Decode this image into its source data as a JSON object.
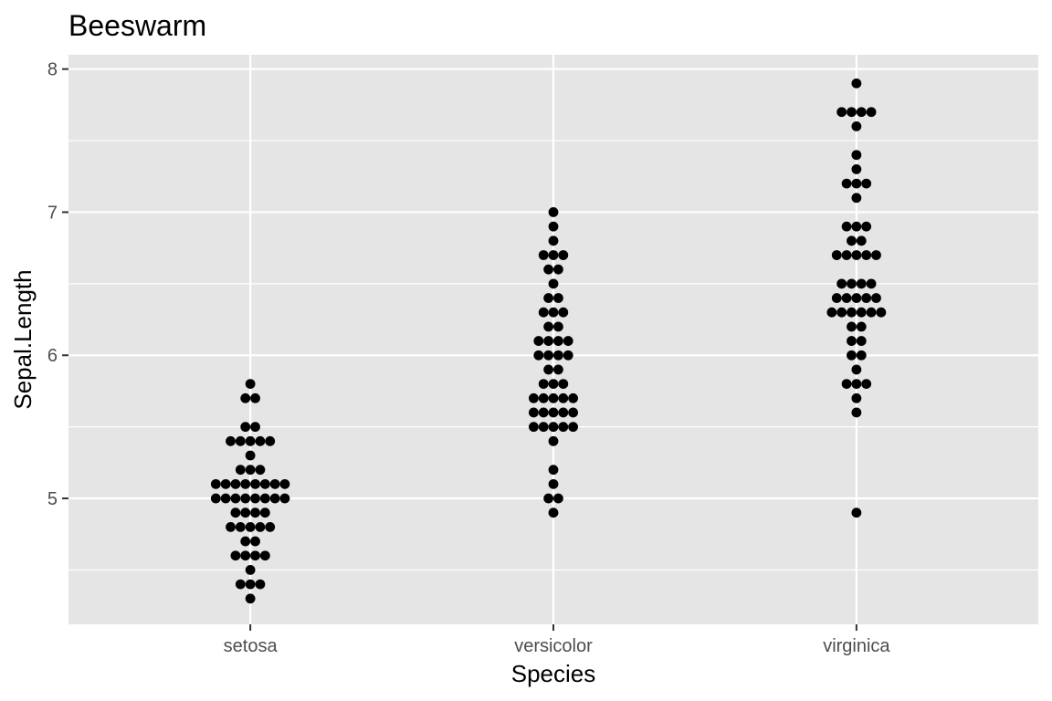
{
  "chart_data": {
    "type": "scatter",
    "subtype": "beeswarm",
    "title": "Beeswarm",
    "xlabel": "Species",
    "ylabel": "Sepal.Length",
    "categories": [
      "setosa",
      "versicolor",
      "virginica"
    ],
    "ylim": [
      4.12,
      8.1
    ],
    "yticks": [
      5,
      6,
      7,
      8
    ],
    "grid": true,
    "legend": "none",
    "colors": {
      "panel": "#e5e5e5",
      "grid": "#ffffff",
      "point": "#000000",
      "tick": "#333333"
    },
    "series": [
      {
        "category": "setosa",
        "values": [
          4.3,
          4.4,
          4.4,
          4.4,
          4.5,
          4.6,
          4.6,
          4.6,
          4.6,
          4.7,
          4.7,
          4.8,
          4.8,
          4.8,
          4.8,
          4.8,
          4.9,
          4.9,
          4.9,
          4.9,
          5.0,
          5.0,
          5.0,
          5.0,
          5.0,
          5.0,
          5.0,
          5.0,
          5.1,
          5.1,
          5.1,
          5.1,
          5.1,
          5.1,
          5.1,
          5.1,
          5.2,
          5.2,
          5.2,
          5.3,
          5.4,
          5.4,
          5.4,
          5.4,
          5.4,
          5.5,
          5.5,
          5.7,
          5.7,
          5.8
        ]
      },
      {
        "category": "versicolor",
        "values": [
          4.9,
          5.0,
          5.0,
          5.1,
          5.2,
          5.4,
          5.5,
          5.5,
          5.5,
          5.5,
          5.5,
          5.6,
          5.6,
          5.6,
          5.6,
          5.6,
          5.7,
          5.7,
          5.7,
          5.7,
          5.7,
          5.8,
          5.8,
          5.8,
          5.9,
          5.9,
          6.0,
          6.0,
          6.0,
          6.0,
          6.1,
          6.1,
          6.1,
          6.1,
          6.2,
          6.2,
          6.3,
          6.3,
          6.3,
          6.4,
          6.4,
          6.5,
          6.6,
          6.6,
          6.7,
          6.7,
          6.7,
          6.8,
          6.9,
          7.0
        ]
      },
      {
        "category": "virginica",
        "values": [
          4.9,
          5.6,
          5.7,
          5.8,
          5.8,
          5.8,
          5.9,
          6.0,
          6.0,
          6.1,
          6.1,
          6.2,
          6.2,
          6.3,
          6.3,
          6.3,
          6.3,
          6.3,
          6.3,
          6.4,
          6.4,
          6.4,
          6.4,
          6.4,
          6.5,
          6.5,
          6.5,
          6.5,
          6.7,
          6.7,
          6.7,
          6.7,
          6.7,
          6.8,
          6.8,
          6.9,
          6.9,
          6.9,
          7.1,
          7.2,
          7.2,
          7.2,
          7.3,
          7.4,
          7.6,
          7.7,
          7.7,
          7.7,
          7.7,
          7.9
        ]
      }
    ]
  }
}
